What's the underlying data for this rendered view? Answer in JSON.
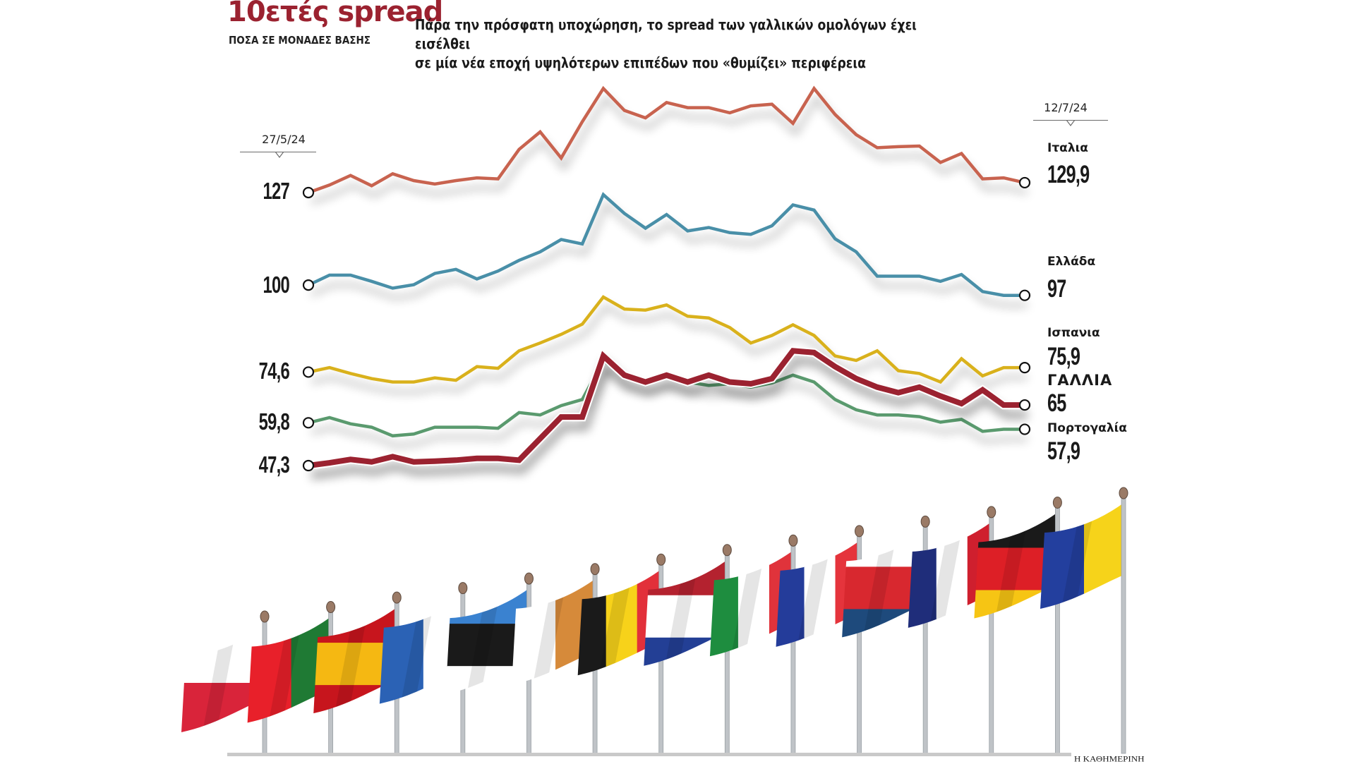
{
  "header": {
    "title": "10ετές spread",
    "subtitle": "ΠΟΣΑ ΣΕ ΜΟΝΑΔΕΣ ΒΑΣΗΣ",
    "lead_line1": "Πάρα την πρόσφατη υποχώρηση, το spread των γαλλικών ομολόγων έχει εισέλθει",
    "lead_line2": "σε μία νέα εποχή υψηλότερων επιπέδων που «θυμίζει» περιφέρεια"
  },
  "credit": "Η ΚΑΘΗΜΕΡΙΝΗ",
  "chart_data": {
    "type": "line",
    "title": "10ετές spread",
    "ylabel": "ΠΟΣΑ ΣΕ ΜΟΝΑΔΕΣ ΒΑΣΗΣ",
    "xlabel": "",
    "x_start_label": "27/5/24",
    "x_end_label": "12/7/24",
    "n_points": 35,
    "ylim": [
      45,
      160
    ],
    "grid": false,
    "legend": "labels at right end of each line",
    "series": [
      {
        "name": "Ιταλία",
        "label": "Ιταλια",
        "color": "#c8634f",
        "emphasis": false,
        "start_label": "127",
        "end_label": "129,9",
        "values": [
          127.0,
          129.2,
          132.0,
          129.0,
          132.5,
          130.5,
          129.5,
          130.5,
          131.3,
          131.0,
          139.6,
          144.7,
          137.1,
          147.7,
          157.4,
          151.0,
          148.8,
          153.3,
          151.8,
          151.8,
          150.3,
          152.3,
          152.8,
          147.2,
          157.4,
          149.8,
          143.9,
          140.1,
          140.4,
          140.6,
          135.8,
          138.4,
          131.0,
          131.3,
          129.9
        ]
      },
      {
        "name": "Ελλάδα",
        "label": "Ελλάδα",
        "color": "#4a8fa8",
        "emphasis": false,
        "start_label": "100",
        "end_label": "97",
        "values": [
          100.0,
          102.9,
          102.9,
          101.1,
          99.1,
          100.1,
          103.4,
          104.6,
          101.8,
          104.1,
          107.2,
          109.7,
          113.3,
          112.0,
          126.4,
          120.9,
          116.6,
          120.6,
          115.8,
          116.8,
          115.3,
          114.8,
          117.3,
          123.4,
          121.9,
          113.5,
          109.7,
          102.6,
          102.6,
          102.6,
          101.1,
          103.1,
          98.1,
          97.0,
          97.0
        ]
      },
      {
        "name": "Ισπανία",
        "label": "Ισπανια",
        "color": "#d9b11a",
        "emphasis": false,
        "start_label": "74,6",
        "end_label": "75,9",
        "values": [
          74.6,
          75.9,
          74.2,
          72.7,
          71.7,
          71.7,
          72.9,
          72.2,
          76.2,
          75.7,
          80.8,
          83.1,
          85.6,
          88.6,
          96.5,
          93.0,
          92.7,
          94.2,
          90.9,
          90.4,
          87.6,
          83.1,
          85.3,
          88.4,
          85.3,
          79.3,
          78.0,
          80.8,
          75.0,
          74.2,
          71.7,
          78.5,
          73.5,
          75.9,
          75.9
        ]
      },
      {
        "name": "Γαλλία",
        "label": "ΓΑΛΛΙΑ",
        "color": "#9b2230",
        "emphasis": true,
        "start_label": "47,3",
        "end_label": "65",
        "values": [
          47.3,
          48.1,
          49.1,
          48.4,
          49.9,
          48.4,
          48.6,
          48.9,
          49.4,
          49.4,
          48.9,
          55.2,
          61.5,
          61.5,
          79.3,
          73.7,
          71.7,
          73.7,
          71.7,
          73.7,
          71.7,
          71.2,
          72.7,
          80.8,
          80.3,
          76.2,
          72.7,
          70.2,
          68.6,
          70.2,
          67.6,
          65.4,
          69.4,
          65.0,
          65.0
        ]
      },
      {
        "name": "Πορτογαλία",
        "label": "Πορτογαλία",
        "color": "#5a9a6e",
        "emphasis": false,
        "start_label": "59,8",
        "end_label": "57,9",
        "values": [
          59.8,
          61.3,
          59.5,
          58.5,
          56.0,
          56.5,
          58.5,
          58.5,
          58.5,
          58.2,
          62.8,
          62.1,
          64.8,
          66.6,
          78.0,
          73.2,
          71.7,
          73.7,
          71.7,
          70.7,
          71.2,
          70.2,
          71.4,
          73.7,
          71.7,
          66.6,
          63.6,
          62.1,
          62.1,
          61.6,
          60.0,
          60.8,
          57.3,
          57.9,
          57.9
        ]
      }
    ]
  },
  "flags": [
    {
      "country": "Πολωνία",
      "colors": [
        "#ffffff",
        "#d9243a"
      ]
    },
    {
      "country": "Πορτογαλία",
      "colors": [
        "#e8202a",
        "#1f7a34"
      ]
    },
    {
      "country": "Ισπανία",
      "colors": [
        "#c7151d",
        "#f5b812",
        "#c7151d"
      ]
    },
    {
      "country": "Ελλάδα",
      "colors": [
        "#2b62b5",
        "#ffffff"
      ]
    },
    {
      "country": "Εσθονία",
      "colors": [
        "#3a82d0",
        "#1a1a1a",
        "#ffffff"
      ]
    },
    {
      "country": "Κύπρος",
      "colors": [
        "#ffffff",
        "#d68a3a"
      ]
    },
    {
      "country": "Βέλγιο",
      "colors": [
        "#1a1a1a",
        "#f7d21a",
        "#e2303a"
      ]
    },
    {
      "country": "Ολλανδία",
      "colors": [
        "#b4222f",
        "#ffffff",
        "#233f95"
      ]
    },
    {
      "country": "Ιρλανδία/Ιταλία",
      "colors": [
        "#1e8d3f",
        "#ffffff",
        "#e0333b"
      ]
    },
    {
      "country": "Γαλλία",
      "colors": [
        "#243c9a",
        "#ffffff",
        "#e5343c"
      ]
    },
    {
      "country": "Τσεχία",
      "colors": [
        "#ffffff",
        "#d8282f",
        "#1e4a7c"
      ]
    },
    {
      "country": "Ηνωμένο Βασίλειο",
      "colors": [
        "#1f2d7a",
        "#ffffff",
        "#cf1f2e"
      ]
    },
    {
      "country": "Γερμανία",
      "colors": [
        "#1a1a1a",
        "#dd1f26",
        "#f6c514"
      ]
    },
    {
      "country": "ΕΕ",
      "colors": [
        "#233f9e",
        "#f6d31a"
      ]
    }
  ]
}
